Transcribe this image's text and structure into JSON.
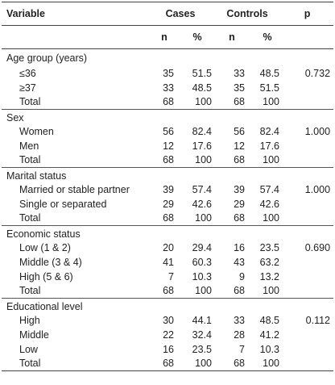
{
  "header": {
    "variable": "Variable",
    "cases": "Cases",
    "controls": "Controls",
    "p": "p",
    "n": "n",
    "pct": "%"
  },
  "sections": [
    {
      "title": "Age group (years)",
      "rows": [
        {
          "label": "≤36",
          "cases_n": "35",
          "cases_pct": "51.5",
          "controls_n": "33",
          "controls_pct": "48.5",
          "p": "0.732"
        },
        {
          "label": "≥37",
          "cases_n": "33",
          "cases_pct": "48.5",
          "controls_n": "35",
          "controls_pct": "51.5",
          "p": ""
        },
        {
          "label": "Total",
          "cases_n": "68",
          "cases_pct": "100",
          "controls_n": "68",
          "controls_pct": "100",
          "p": ""
        }
      ]
    },
    {
      "title": "Sex",
      "rows": [
        {
          "label": "Women",
          "cases_n": "56",
          "cases_pct": "82.4",
          "controls_n": "56",
          "controls_pct": "82.4",
          "p": "1.000"
        },
        {
          "label": "Men",
          "cases_n": "12",
          "cases_pct": "17.6",
          "controls_n": "12",
          "controls_pct": "17.6",
          "p": ""
        },
        {
          "label": "Total",
          "cases_n": "68",
          "cases_pct": "100",
          "controls_n": "68",
          "controls_pct": "100",
          "p": ""
        }
      ]
    },
    {
      "title": "Marital status",
      "rows": [
        {
          "label": "Married or stable partner",
          "cases_n": "39",
          "cases_pct": "57.4",
          "controls_n": "39",
          "controls_pct": "57.4",
          "p": "1.000"
        },
        {
          "label": "Single or separated",
          "cases_n": "29",
          "cases_pct": "42.6",
          "controls_n": "29",
          "controls_pct": "42.6",
          "p": ""
        },
        {
          "label": "Total",
          "cases_n": "68",
          "cases_pct": "100",
          "controls_n": "68",
          "controls_pct": "100",
          "p": ""
        }
      ]
    },
    {
      "title": "Economic status",
      "rows": [
        {
          "label": "Low (1 & 2)",
          "cases_n": "20",
          "cases_pct": "29.4",
          "controls_n": "16",
          "controls_pct": "23.5",
          "p": "0.690"
        },
        {
          "label": "Middle (3 & 4)",
          "cases_n": "41",
          "cases_pct": "60.3",
          "controls_n": "43",
          "controls_pct": "63.2",
          "p": ""
        },
        {
          "label": "High (5 & 6)",
          "cases_n": "7",
          "cases_pct": "10.3",
          "controls_n": "9",
          "controls_pct": "13.2",
          "p": ""
        },
        {
          "label": "Total",
          "cases_n": "68",
          "cases_pct": "100",
          "controls_n": "68",
          "controls_pct": "100",
          "p": ""
        }
      ]
    },
    {
      "title": "Educational level",
      "rows": [
        {
          "label": "High",
          "cases_n": "30",
          "cases_pct": "44.1",
          "controls_n": "33",
          "controls_pct": "48.5",
          "p": "0.112"
        },
        {
          "label": "Middle",
          "cases_n": "22",
          "cases_pct": "32.4",
          "controls_n": "28",
          "controls_pct": "41.2",
          "p": ""
        },
        {
          "label": "Low",
          "cases_n": "16",
          "cases_pct": "23.5",
          "controls_n": "7",
          "controls_pct": "10.3",
          "p": ""
        },
        {
          "label": "Total",
          "cases_n": "68",
          "cases_pct": "100",
          "controls_n": "68",
          "controls_pct": "100",
          "p": ""
        }
      ]
    }
  ]
}
